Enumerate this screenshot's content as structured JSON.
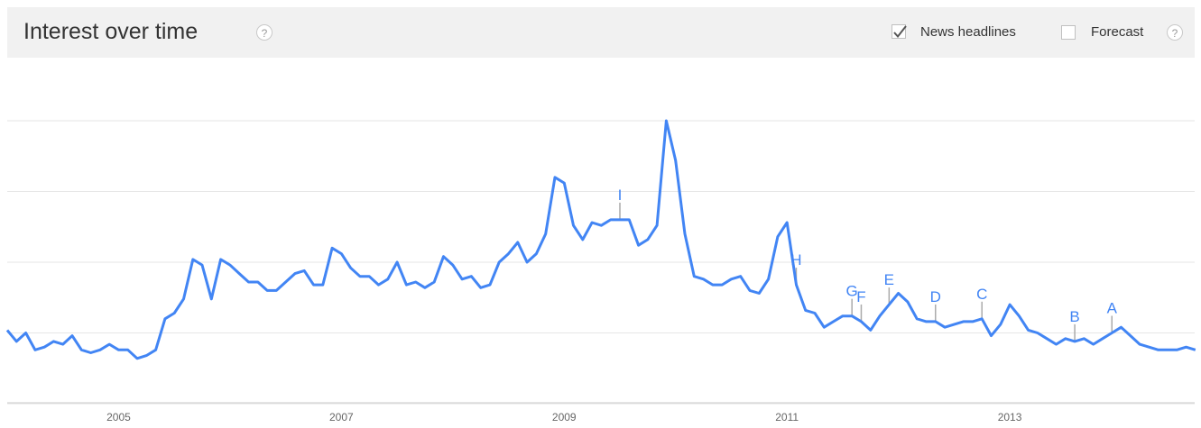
{
  "header": {
    "title": "Interest over time",
    "help_glyph": "?",
    "news_headlines_label": "News headlines",
    "news_headlines_checked": true,
    "forecast_label": "Forecast",
    "forecast_checked": false
  },
  "colors": {
    "line": "#4285f4",
    "marker_stem": "#aaaaaa",
    "grid": "#e6e6e6",
    "axis": "#cccccc",
    "tick_text": "#666666",
    "header_bg": "#f1f1f1"
  },
  "chart_data": {
    "type": "line",
    "title": "Interest over time",
    "xlabel": "",
    "ylabel": "",
    "xlim": [
      2004.0,
      2014.66
    ],
    "ylim": [
      0,
      100
    ],
    "grid": true,
    "x_tick_labels": [
      "2005",
      "2007",
      "2009",
      "2011",
      "2013"
    ],
    "x_tick_values": [
      2005,
      2007,
      2009,
      2011,
      2013
    ],
    "series": [
      {
        "x_start": 2004.0,
        "x_step_months": 1,
        "values": [
          26,
          22,
          25,
          19,
          20,
          22,
          21,
          24,
          19,
          18,
          19,
          21,
          19,
          19,
          16,
          17,
          19,
          30,
          32,
          37,
          51,
          49,
          37,
          51,
          49,
          46,
          43,
          43,
          40,
          40,
          43,
          46,
          47,
          42,
          42,
          55,
          53,
          48,
          45,
          45,
          42,
          44,
          50,
          42,
          43,
          41,
          43,
          52,
          49,
          44,
          45,
          41,
          42,
          50,
          53,
          57,
          50,
          53,
          60,
          80,
          78,
          63,
          58,
          64,
          63,
          65,
          65,
          65,
          56,
          58,
          63,
          100,
          86,
          60,
          45,
          44,
          42,
          42,
          44,
          45,
          40,
          39,
          44,
          59,
          64,
          42,
          33,
          32,
          27,
          29,
          31,
          31,
          29,
          26,
          31,
          35,
          39,
          36,
          30,
          29,
          29,
          27,
          28,
          29,
          29,
          30,
          24,
          28,
          35,
          31,
          26,
          25,
          23,
          21,
          23,
          22,
          23,
          21,
          23,
          25,
          27,
          24,
          21,
          20,
          19,
          19,
          19,
          20,
          19
        ]
      }
    ],
    "annotations": [
      {
        "label": "A",
        "x": 2013.9167
      },
      {
        "label": "B",
        "x": 2013.5833
      },
      {
        "label": "C",
        "x": 2012.75
      },
      {
        "label": "D",
        "x": 2012.3333
      },
      {
        "label": "E",
        "x": 2011.9167
      },
      {
        "label": "F",
        "x": 2011.6667
      },
      {
        "label": "G",
        "x": 2011.5833
      },
      {
        "label": "H",
        "x": 2011.0833
      },
      {
        "label": "I",
        "x": 2009.5
      }
    ]
  }
}
